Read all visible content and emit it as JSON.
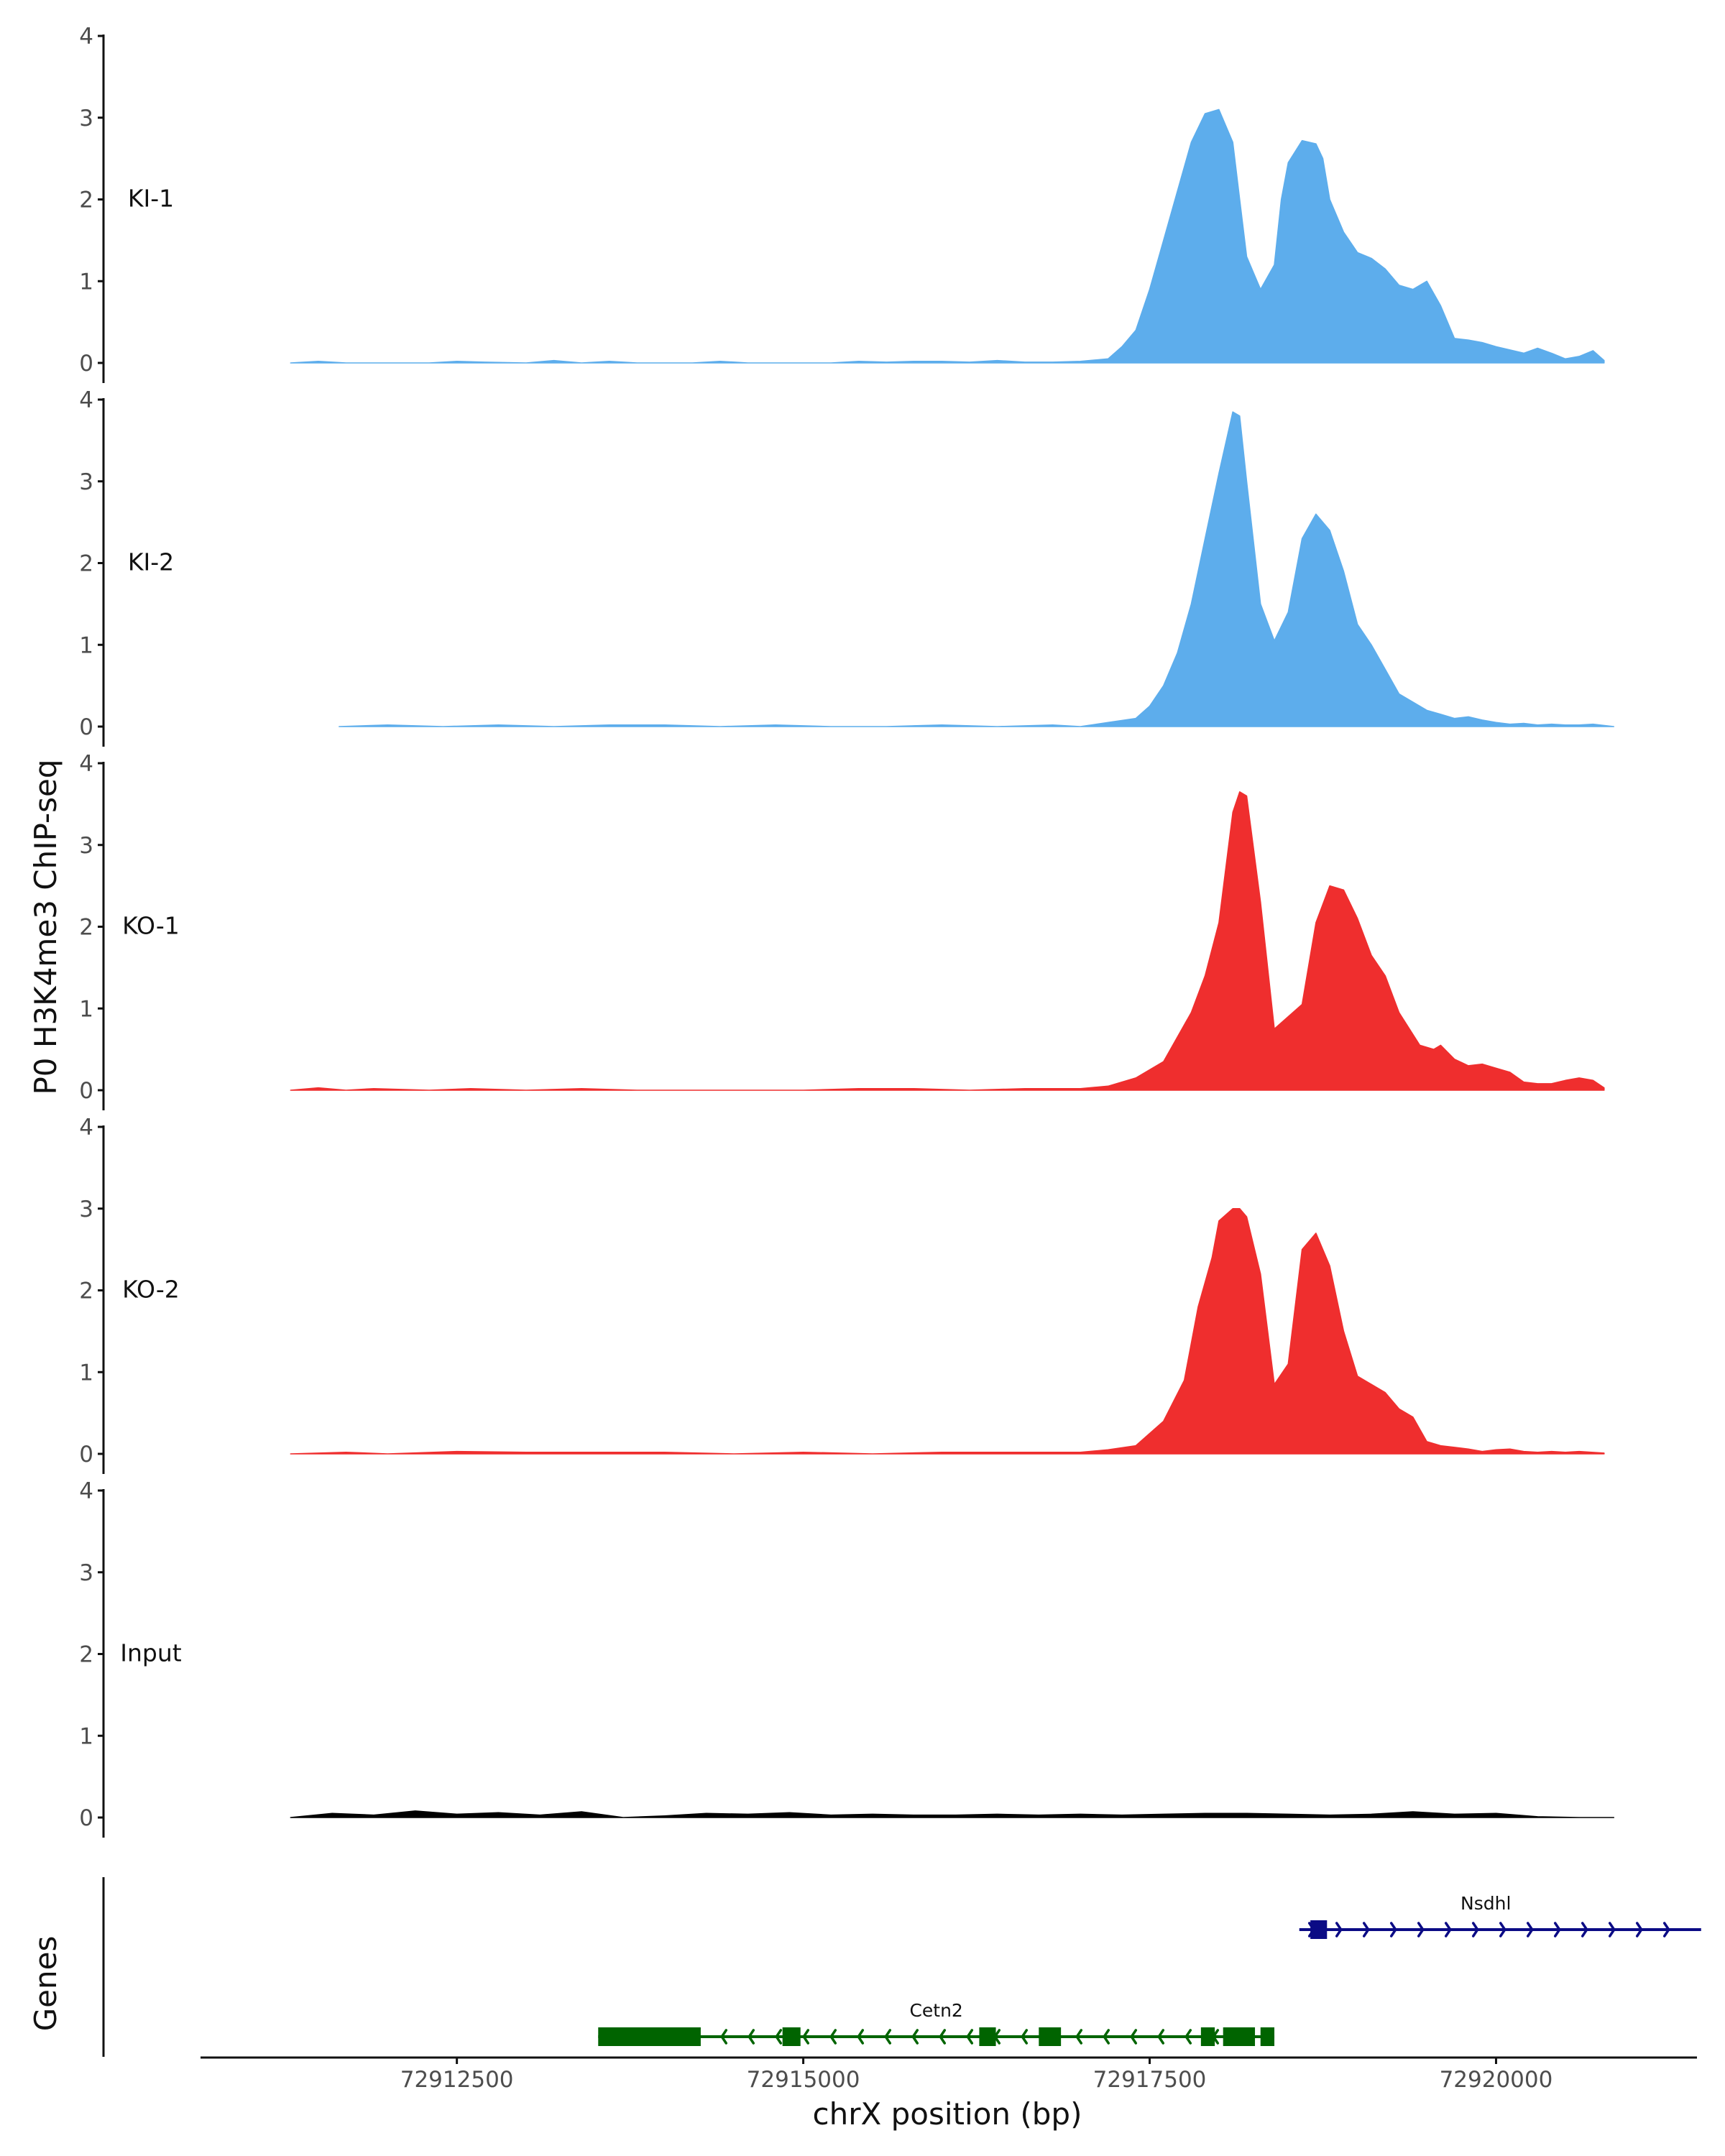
{
  "chart_data": {
    "type": "area",
    "title": "",
    "ylabel": "P0 H3K4me3 ChIP-seq",
    "xlabel": "chrX position (bp)",
    "xlim": [
      72910650,
      72921450
    ],
    "ylim": [
      0,
      4
    ],
    "y_ticks": [
      0,
      1,
      2,
      3,
      4
    ],
    "x_ticks": [
      72912500,
      72915000,
      72917500,
      72920000
    ],
    "x_tick_labels": [
      "72912500",
      "72915000",
      "72917500",
      "72920000"
    ],
    "tracks": [
      {
        "name": "KI-1",
        "color": "#5DADEC",
        "x": [
          72911300,
          72911500,
          72911700,
          72911900,
          72912300,
          72912500,
          72912700,
          72913000,
          72913200,
          72913400,
          72913600,
          72913800,
          72914000,
          72914200,
          72914400,
          72914600,
          72914800,
          72915000,
          72915200,
          72915400,
          72915600,
          72915800,
          72916000,
          72916200,
          72916400,
          72916600,
          72916800,
          72917000,
          72917200,
          72917300,
          72917400,
          72917500,
          72917600,
          72917700,
          72917800,
          72917900,
          72918000,
          72918100,
          72918150,
          72918200,
          72918300,
          72918400,
          72918450,
          72918500,
          72918600,
          72918700,
          72918750,
          72918800,
          72918900,
          72919000,
          72919100,
          72919200,
          72919300,
          72919400,
          72919500,
          72919550,
          72919600,
          72919700,
          72919800,
          72919900,
          72920000,
          72920100,
          72920200,
          72920300,
          72920400,
          72920500,
          72920600,
          72920700,
          72920780
        ],
        "values": [
          0.0,
          0.02,
          0.0,
          0.0,
          0.0,
          0.02,
          0.01,
          0.0,
          0.03,
          0.0,
          0.02,
          0.0,
          0.0,
          0.0,
          0.02,
          0.0,
          0.0,
          0.0,
          0.0,
          0.02,
          0.01,
          0.02,
          0.02,
          0.01,
          0.03,
          0.01,
          0.01,
          0.02,
          0.05,
          0.2,
          0.4,
          0.9,
          1.5,
          2.1,
          2.7,
          3.05,
          3.1,
          2.7,
          2.0,
          1.3,
          0.9,
          1.2,
          2.0,
          2.45,
          2.72,
          2.68,
          2.5,
          2.0,
          1.6,
          1.35,
          1.28,
          1.15,
          0.95,
          0.9,
          1.0,
          0.85,
          0.7,
          0.3,
          0.28,
          0.25,
          0.2,
          0.16,
          0.12,
          0.18,
          0.12,
          0.05,
          0.08,
          0.15,
          0.03
        ]
      },
      {
        "name": "KI-2",
        "color": "#5DADEC",
        "x": [
          72911650,
          72912000,
          72912400,
          72912800,
          72913200,
          72913600,
          72914000,
          72914400,
          72914800,
          72915200,
          72915600,
          72916000,
          72916400,
          72916800,
          72917000,
          72917200,
          72917400,
          72917500,
          72917600,
          72917700,
          72917800,
          72917900,
          72918000,
          72918100,
          72918150,
          72918200,
          72918300,
          72918400,
          72918500,
          72918600,
          72918700,
          72918800,
          72918900,
          72919000,
          72919100,
          72919200,
          72919300,
          72919400,
          72919500,
          72919600,
          72919700,
          72919800,
          72919900,
          72920000,
          72920100,
          72920200,
          72920300,
          72920400,
          72920500,
          72920600,
          72920700,
          72920850
        ],
        "values": [
          0.0,
          0.02,
          0.0,
          0.02,
          0.0,
          0.02,
          0.02,
          0.0,
          0.02,
          0.0,
          0.0,
          0.02,
          0.0,
          0.02,
          0.0,
          0.05,
          0.1,
          0.25,
          0.5,
          0.9,
          1.5,
          2.3,
          3.1,
          3.85,
          3.8,
          3.0,
          1.5,
          1.05,
          1.4,
          2.3,
          2.6,
          2.4,
          1.9,
          1.25,
          1.0,
          0.7,
          0.4,
          0.3,
          0.2,
          0.15,
          0.1,
          0.12,
          0.08,
          0.05,
          0.03,
          0.04,
          0.02,
          0.03,
          0.02,
          0.02,
          0.03,
          0.0
        ]
      },
      {
        "name": "KO-1",
        "color": "#EF2E2E",
        "x": [
          72911300,
          72911500,
          72911700,
          72911900,
          72912300,
          72912600,
          72913000,
          72913400,
          72913800,
          72914200,
          72914600,
          72915000,
          72915400,
          72915800,
          72916200,
          72916600,
          72917000,
          72917200,
          72917400,
          72917600,
          72917800,
          72917900,
          72918000,
          72918100,
          72918150,
          72918200,
          72918300,
          72918400,
          72918600,
          72918700,
          72918800,
          72918900,
          72919000,
          72919100,
          72919200,
          72919300,
          72919450,
          72919550,
          72919600,
          72919700,
          72919800,
          72919900,
          72920000,
          72920100,
          72920200,
          72920300,
          72920400,
          72920500,
          72920600,
          72920700,
          72920780
        ],
        "values": [
          0.0,
          0.03,
          0.0,
          0.02,
          0.0,
          0.02,
          0.0,
          0.02,
          0.0,
          0.0,
          0.0,
          0.0,
          0.02,
          0.02,
          0.0,
          0.02,
          0.02,
          0.05,
          0.15,
          0.35,
          0.95,
          1.4,
          2.05,
          3.4,
          3.65,
          3.6,
          2.3,
          0.75,
          1.05,
          2.05,
          2.5,
          2.45,
          2.1,
          1.65,
          1.4,
          0.95,
          0.55,
          0.5,
          0.55,
          0.38,
          0.3,
          0.32,
          0.27,
          0.22,
          0.1,
          0.08,
          0.08,
          0.12,
          0.15,
          0.12,
          0.03
        ]
      },
      {
        "name": "KO-2",
        "color": "#EF2E2E",
        "x": [
          72911300,
          72911700,
          72912000,
          72912500,
          72913000,
          72913500,
          72914000,
          72914500,
          72915000,
          72915500,
          72916000,
          72916500,
          72917000,
          72917200,
          72917400,
          72917600,
          72917750,
          72917850,
          72917950,
          72918000,
          72918100,
          72918150,
          72918200,
          72918300,
          72918400,
          72918500,
          72918600,
          72918700,
          72918800,
          72918900,
          72919000,
          72919100,
          72919200,
          72919300,
          72919400,
          72919500,
          72919600,
          72919700,
          72919800,
          72919900,
          72920000,
          72920100,
          72920200,
          72920300,
          72920400,
          72920500,
          72920600,
          72920780
        ],
        "values": [
          0.0,
          0.02,
          0.0,
          0.03,
          0.02,
          0.02,
          0.02,
          0.0,
          0.02,
          0.0,
          0.02,
          0.02,
          0.02,
          0.05,
          0.1,
          0.4,
          0.9,
          1.8,
          2.4,
          2.85,
          3.0,
          3.0,
          2.9,
          2.2,
          0.85,
          1.1,
          2.5,
          2.7,
          2.3,
          1.5,
          0.95,
          0.85,
          0.75,
          0.55,
          0.45,
          0.15,
          0.1,
          0.08,
          0.06,
          0.03,
          0.05,
          0.06,
          0.03,
          0.02,
          0.03,
          0.02,
          0.03,
          0.01
        ]
      },
      {
        "name": "Input",
        "color": "#000000",
        "x": [
          72911300,
          72911600,
          72911900,
          72912200,
          72912500,
          72912800,
          72913100,
          72913400,
          72913700,
          72914000,
          72914300,
          72914600,
          72914900,
          72915200,
          72915500,
          72915800,
          72916100,
          72916400,
          72916700,
          72917000,
          72917300,
          72917600,
          72917900,
          72918200,
          72918500,
          72918800,
          72919100,
          72919400,
          72919700,
          72920000,
          72920300,
          72920600,
          72920850
        ],
        "values": [
          0.0,
          0.05,
          0.03,
          0.08,
          0.04,
          0.06,
          0.03,
          0.07,
          0.0,
          0.02,
          0.05,
          0.04,
          0.06,
          0.03,
          0.04,
          0.03,
          0.03,
          0.04,
          0.03,
          0.04,
          0.03,
          0.04,
          0.05,
          0.05,
          0.04,
          0.03,
          0.04,
          0.07,
          0.04,
          0.05,
          0.01,
          0.0,
          0.0
        ]
      }
    ],
    "genes_track": {
      "label": "Genes",
      "genes": [
        {
          "name": "Nsdhl",
          "strand": "+",
          "color": "#0B0B85",
          "start": 72918580,
          "end": 72921480,
          "exons": [
            [
              72918660,
              72918780
            ]
          ]
        },
        {
          "name": "Cetn2",
          "strand": "-",
          "color": "#006400",
          "start": 72913520,
          "end": 72918400,
          "exons": [
            [
              72913520,
              72914260
            ],
            [
              72914850,
              72914980
            ],
            [
              72916270,
              72916390
            ],
            [
              72916700,
              72916860
            ],
            [
              72917870,
              72917970
            ],
            [
              72918030,
              72918260
            ],
            [
              72918300,
              72918400
            ]
          ]
        }
      ]
    }
  }
}
